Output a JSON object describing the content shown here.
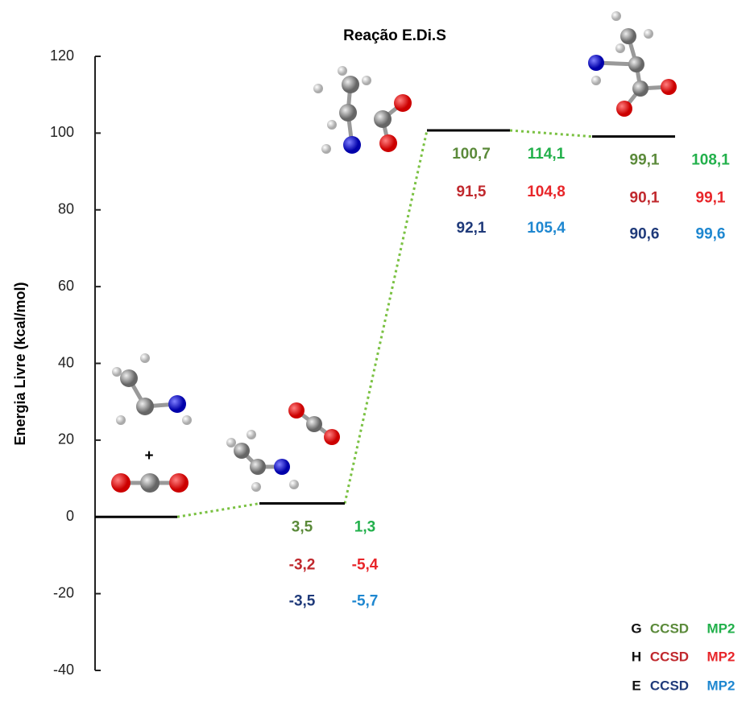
{
  "chart_data": {
    "type": "energy-profile",
    "title": "Reação E.Di.S",
    "y_label": "Energia Livre (kcal/mol)",
    "ylim": [
      -40,
      120
    ],
    "yticks": [
      -40,
      -20,
      0,
      20,
      40,
      60,
      80,
      100,
      120
    ],
    "annotations": [
      "+"
    ],
    "level_color": "#000000",
    "connector_color": "#7ac142",
    "series": [
      {
        "group": "G",
        "name": "CCSD",
        "color": "#5b8a3a",
        "values": [
          0,
          3.5,
          100.7,
          99.1
        ],
        "value_labels": [
          null,
          "3,5",
          "100,7",
          "99,1"
        ]
      },
      {
        "group": "G",
        "name": "MP2",
        "color": "#22b04b",
        "values": [
          null,
          1.3,
          114.1,
          108.1
        ],
        "value_labels": [
          null,
          "1,3",
          "114,1",
          "108,1"
        ]
      },
      {
        "group": "H",
        "name": "CCSD",
        "color": "#c0282d",
        "values": [
          null,
          -3.2,
          91.5,
          90.1
        ],
        "value_labels": [
          null,
          "-3,2",
          "91,5",
          "90,1"
        ]
      },
      {
        "group": "H",
        "name": "MP2",
        "color": "#e8262a",
        "values": [
          null,
          -5.4,
          104.8,
          99.1
        ],
        "value_labels": [
          null,
          "-5,4",
          "104,8",
          "99,1"
        ]
      },
      {
        "group": "E",
        "name": "CCSD",
        "color": "#1f3a7a",
        "values": [
          null,
          -3.5,
          92.1,
          90.6
        ],
        "value_labels": [
          null,
          "-3,5",
          "92,1",
          "90,6"
        ]
      },
      {
        "group": "E",
        "name": "MP2",
        "color": "#1e87d0",
        "values": [
          null,
          -5.7,
          105.4,
          99.6
        ],
        "value_labels": [
          null,
          "-5,7",
          "105,4",
          "99,6"
        ]
      }
    ]
  }
}
